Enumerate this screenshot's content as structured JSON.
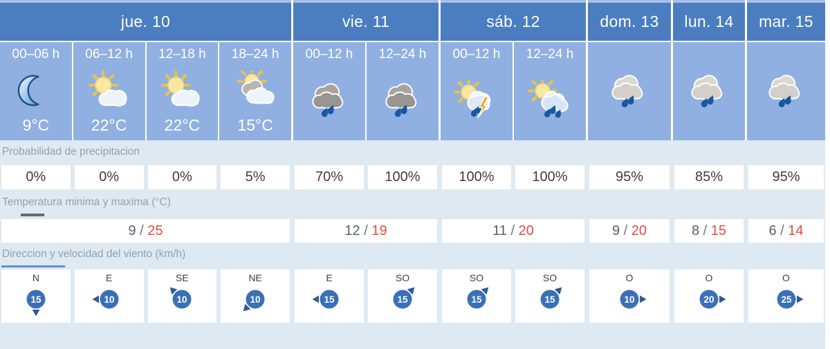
{
  "widget": {
    "title": "weather-forecast-table"
  },
  "colors": {
    "day_header_blue": "#4b7dc1",
    "slot_cell_blue": "#90b0e1",
    "top_strip_blue": "#a5c0e8",
    "section_bg": "#dfe9f2",
    "wind_circle_blue": "#3a70b6",
    "wind_arrow_blue": "#2d5b97",
    "rain_drop_blue": "#1a57a0",
    "temp_min_color": "#566270",
    "temp_max_color": "#e24c3f",
    "lightning_orange": "#f6a623"
  },
  "days": [
    {
      "label": "jue. 10",
      "slots": [
        {
          "time": "00–06 h",
          "icon": "moon",
          "temp": "9°C"
        },
        {
          "time": "06–12 h",
          "icon": "sun-cloud",
          "temp": "22°C"
        },
        {
          "time": "12–18 h",
          "icon": "sun-cloud",
          "temp": "22°C"
        },
        {
          "time": "18–24 h",
          "icon": "sun-behind-clouds",
          "temp": "15°C"
        }
      ],
      "min_max": {
        "min": "9",
        "max": "25"
      }
    },
    {
      "label": "vie. 11",
      "slots": [
        {
          "time": "00–12 h",
          "icon": "rain-dark"
        },
        {
          "time": "12–24 h",
          "icon": "rain-dark"
        }
      ],
      "min_max": {
        "min": "12",
        "max": "19"
      }
    },
    {
      "label": "sáb. 12",
      "slots": [
        {
          "time": "00–12 h",
          "icon": "sun-rain-storm"
        },
        {
          "time": "12–24 h",
          "icon": "sun-rain"
        }
      ],
      "min_max": {
        "min": "11",
        "max": "20"
      }
    },
    {
      "label": "dom. 13",
      "slots": [
        {
          "icon": "rain-light"
        }
      ],
      "min_max": {
        "min": "9",
        "max": "20"
      }
    },
    {
      "label": "lun. 14",
      "slots": [
        {
          "icon": "rain-light"
        }
      ],
      "min_max": {
        "min": "8",
        "max": "15"
      }
    },
    {
      "label": "mar. 15",
      "slots": [
        {
          "icon": "rain-light"
        }
      ],
      "min_max": {
        "min": "6",
        "max": "14"
      }
    }
  ],
  "rows": {
    "precipitation": {
      "label": "Probabilidad de precipitacion",
      "values": [
        "0%",
        "0%",
        "0%",
        "5%",
        "70%",
        "100%",
        "100%",
        "100%",
        "95%",
        "85%",
        "95%"
      ]
    },
    "temperature": {
      "label": "Temperatura minima y maxima (°C)",
      "separator": " / "
    },
    "wind": {
      "label": "Direccion y velocidad del viento (km/h)",
      "values": [
        {
          "dir": "N",
          "speed": "15",
          "arrow": "down"
        },
        {
          "dir": "E",
          "speed": "10",
          "arrow": "left"
        },
        {
          "dir": "SE",
          "speed": "10",
          "arrow": "up-left"
        },
        {
          "dir": "NE",
          "speed": "10",
          "arrow": "down-left"
        },
        {
          "dir": "E",
          "speed": "15",
          "arrow": "left"
        },
        {
          "dir": "SO",
          "speed": "15",
          "arrow": "up-right"
        },
        {
          "dir": "SO",
          "speed": "15",
          "arrow": "up-right"
        },
        {
          "dir": "SO",
          "speed": "15",
          "arrow": "up-right"
        },
        {
          "dir": "O",
          "speed": "10",
          "arrow": "right"
        },
        {
          "dir": "O",
          "speed": "20",
          "arrow": "right"
        },
        {
          "dir": "O",
          "speed": "25",
          "arrow": "right"
        }
      ]
    }
  }
}
